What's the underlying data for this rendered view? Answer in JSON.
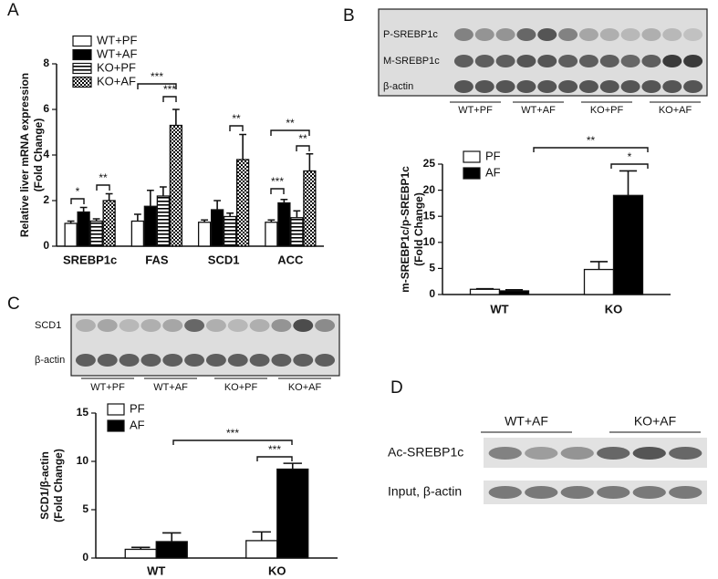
{
  "panel_letters": [
    "A",
    "B",
    "C",
    "D"
  ],
  "blots": [
    {
      "rows": [
        "P-SREBP1c",
        "M-SREBP1c",
        "β-actin"
      ],
      "groups": [
        "WT+PF",
        "WT+AF",
        "KO+PF",
        "KO+AF"
      ]
    },
    {
      "rows": [
        "SCD1",
        "β-actin"
      ],
      "groups": [
        "WT+PF",
        "WT+AF",
        "KO+PF",
        "KO+AF"
      ]
    },
    {
      "rows": [
        "Ac-SREBP1c",
        "Input, β-actin"
      ],
      "groups": [
        "WT+AF",
        "KO+AF"
      ]
    }
  ],
  "chart_data": [
    {
      "type": "bar",
      "ylabel": [
        "Relative liver mRNA expression",
        "(Fold Change)"
      ],
      "categories": [
        "SREBP1c",
        "FAS",
        "SCD1",
        "ACC"
      ],
      "series": [
        {
          "name": "WT+PF",
          "color": "#ffffff",
          "fill": "solid",
          "values": [
            1.0,
            1.1,
            1.05,
            1.05
          ],
          "errors": [
            0.1,
            0.3,
            0.1,
            0.1
          ]
        },
        {
          "name": "WT+AF",
          "color": "#000000",
          "fill": "solid",
          "values": [
            1.5,
            1.75,
            1.6,
            1.9
          ],
          "errors": [
            0.2,
            0.7,
            0.4,
            0.15
          ]
        },
        {
          "name": "KO+PF",
          "color": "#000000",
          "fill": "stripes",
          "values": [
            1.1,
            2.2,
            1.3,
            1.25
          ],
          "errors": [
            0.1,
            0.4,
            0.15,
            0.3
          ]
        },
        {
          "name": "KO+AF",
          "color": "#000000",
          "fill": "checker",
          "values": [
            2.0,
            5.3,
            3.8,
            3.3
          ],
          "errors": [
            0.3,
            0.7,
            1.1,
            0.75
          ]
        }
      ],
      "ylim": [
        0,
        8
      ],
      "yticks": [
        0,
        2,
        4,
        6,
        8
      ],
      "annotations": [
        "*",
        "**",
        "***",
        "***",
        "**",
        "***",
        "**",
        "**"
      ]
    },
    {
      "type": "bar",
      "ylabel": [
        "m-SREBP1c/p-SREBP1c",
        "(Fold Change)"
      ],
      "categories": [
        "WT",
        "KO"
      ],
      "series": [
        {
          "name": "PF",
          "color": "#ffffff",
          "fill": "solid",
          "values": [
            1.0,
            4.8
          ],
          "errors": [
            0.1,
            1.5
          ]
        },
        {
          "name": "AF",
          "color": "#000000",
          "fill": "solid",
          "values": [
            0.7,
            19
          ],
          "errors": [
            0.2,
            4.7
          ]
        }
      ],
      "ylim": [
        0,
        25
      ],
      "yticks": [
        0,
        5,
        10,
        15,
        20,
        25
      ],
      "annotations": [
        "**",
        "*"
      ]
    },
    {
      "type": "bar",
      "ylabel": [
        "SCD1/β-actin",
        "(Fold Change)"
      ],
      "categories": [
        "WT",
        "KO"
      ],
      "series": [
        {
          "name": "PF",
          "color": "#ffffff",
          "fill": "solid",
          "values": [
            0.9,
            1.8
          ],
          "errors": [
            0.2,
            0.9
          ]
        },
        {
          "name": "AF",
          "color": "#000000",
          "fill": "solid",
          "values": [
            1.7,
            9.2
          ],
          "errors": [
            0.9,
            0.6
          ]
        }
      ],
      "ylim": [
        0,
        15
      ],
      "yticks": [
        0,
        5,
        10,
        15
      ],
      "annotations": [
        "***",
        "***"
      ]
    }
  ]
}
